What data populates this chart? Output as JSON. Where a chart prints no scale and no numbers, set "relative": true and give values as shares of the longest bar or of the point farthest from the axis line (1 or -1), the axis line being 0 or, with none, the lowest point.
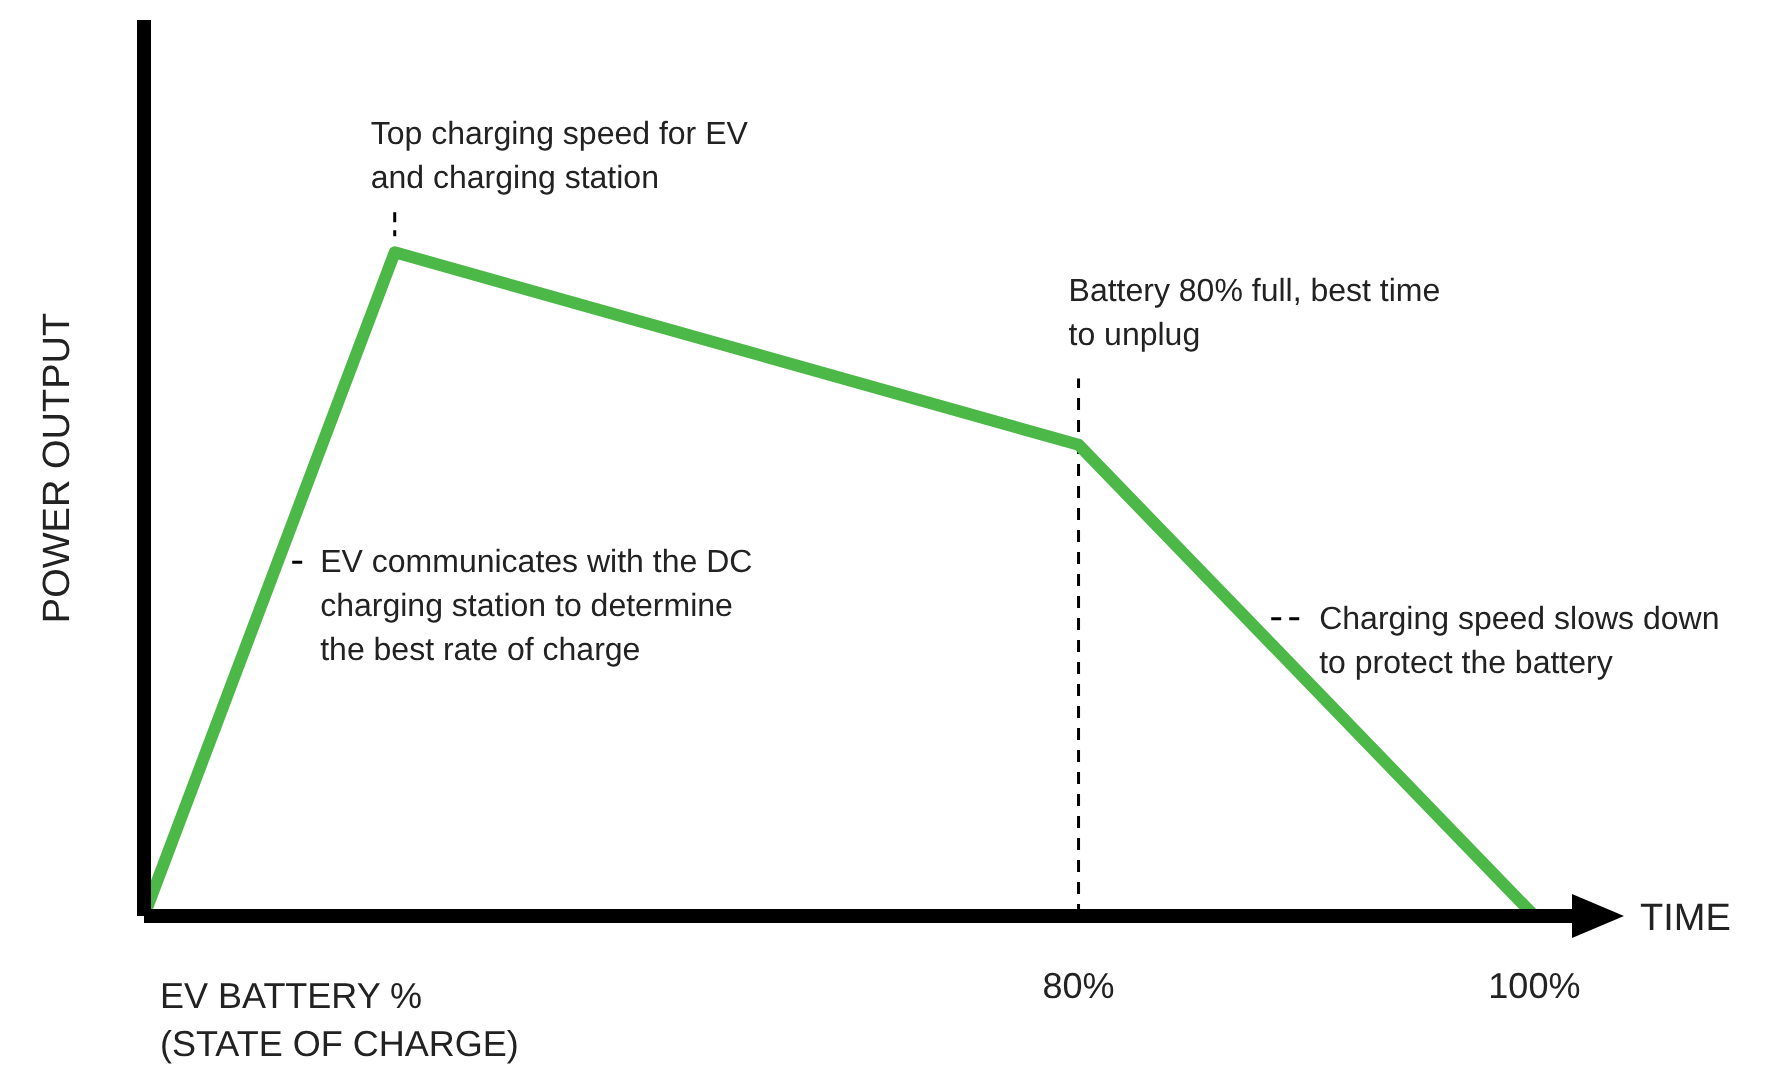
{
  "chart_data": {
    "type": "line",
    "relative": true,
    "xlabel": "TIME",
    "ylabel": "POWER OUTPUT",
    "x": [
      39,
      50,
      80,
      100
    ],
    "values": [
      0,
      1,
      0.71,
      0
    ],
    "color": "#4cb848",
    "xlim": [
      39,
      102
    ],
    "xticks": [
      {
        "value": 80,
        "label": "80%"
      },
      {
        "value": 100,
        "label": "100%"
      }
    ],
    "ref_lines": [
      {
        "axis": "x",
        "value": 80,
        "line_style": "dashed",
        "color": "#000000"
      }
    ],
    "marker": "none",
    "grid": false,
    "legend": false,
    "annotations": [
      {
        "text": "Top charging speed for EV and charging station",
        "x": 50,
        "y": 1
      },
      {
        "text": "Battery 80% full, best time to unplug",
        "x": 80,
        "y": 0.71
      },
      {
        "text": "EV communicates with the DC charging station to determine the best rate of charge",
        "x": 44.8,
        "y": 0.53
      },
      {
        "text": "Charging speed slows down to protect the battery",
        "x": 87.4,
        "y": 0.445
      },
      "EV BATTERY % (STATE OF CHARGE)"
    ]
  }
}
